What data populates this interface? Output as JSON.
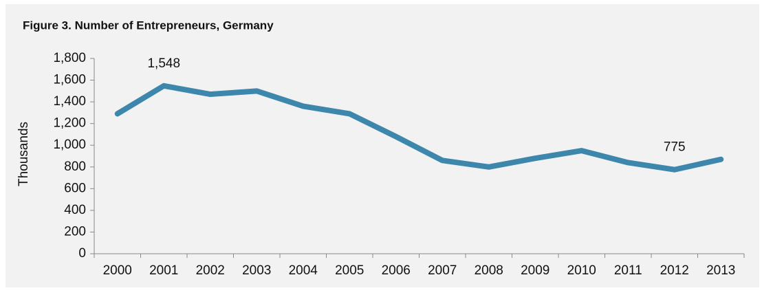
{
  "chart_data": {
    "type": "line",
    "title": "Figure 3. Number of Entrepreneurs, Germany",
    "y_label": "Thousands",
    "categories": [
      "2000",
      "2001",
      "2002",
      "2003",
      "2004",
      "2005",
      "2006",
      "2007",
      "2008",
      "2009",
      "2010",
      "2011",
      "2012",
      "2013"
    ],
    "series": [
      {
        "name": "Entrepreneurs",
        "color": "#3d87ad",
        "values": [
          1290,
          1548,
          1470,
          1500,
          1360,
          1290,
          1080,
          860,
          800,
          880,
          950,
          840,
          775,
          870
        ],
        "value_labels": [
          null,
          "1,548",
          null,
          null,
          null,
          null,
          null,
          null,
          null,
          null,
          null,
          null,
          "775",
          null
        ]
      }
    ],
    "ylim": [
      0,
      1800
    ],
    "yticks": [
      0,
      200,
      400,
      600,
      800,
      {
        "value": 1000,
        "label": "1,000"
      },
      {
        "value": 1200,
        "label": "1,200"
      },
      {
        "value": 1400,
        "label": "1,400"
      },
      {
        "value": 1600,
        "label": "1,600"
      },
      {
        "value": 1800,
        "label": "1,800"
      }
    ],
    "grid": false
  }
}
